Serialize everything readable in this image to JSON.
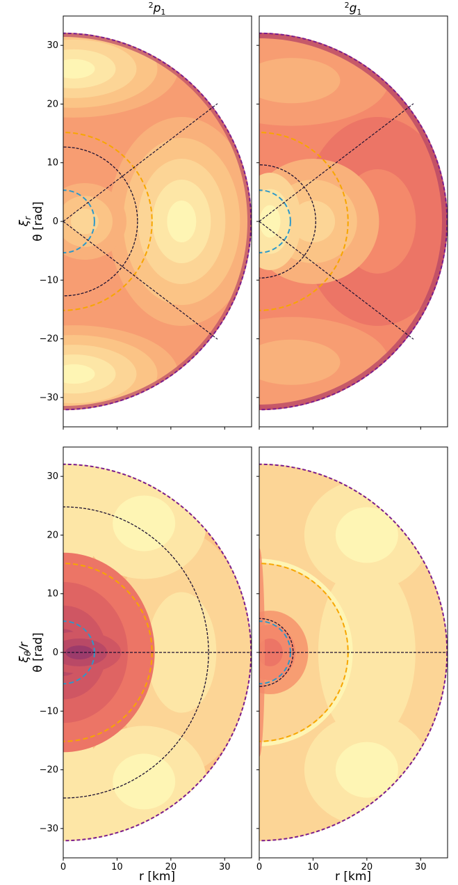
{
  "figure": {
    "panel_titles": {
      "left_base": "p",
      "right_base": "g",
      "superscript": "2",
      "subscript": "1"
    },
    "row_labels": [
      {
        "var": "ξ",
        "sub": "r",
        "suffix": "",
        "theta": "θ [rad]"
      },
      {
        "var": "ξ",
        "sub": "θ",
        "suffix": "/r",
        "theta": "θ [rad]"
      }
    ],
    "xlabel": "r [km]"
  },
  "colors": {
    "palette": [
      "#fef5b4",
      "#fde6a6",
      "#fcd596",
      "#fbc486",
      "#f9b17b",
      "#f79d72",
      "#f4896b",
      "#ec7566",
      "#df6463",
      "#cf5663",
      "#b94966",
      "#9c3b6b"
    ],
    "surface": "#7b1c8c",
    "rays": "#1c1030",
    "core": "#f7a600",
    "inner": "#2d98c9"
  },
  "chart_data": [
    {
      "type": "heatmap",
      "panel": "top-left",
      "title": "2p1",
      "ylabel": "ξr θ [rad]",
      "xlim": [
        0,
        35
      ],
      "ylim": [
        -35,
        35
      ],
      "yticks": [
        -30,
        -20,
        -10,
        0,
        10,
        20,
        30
      ],
      "outer_radius": 35,
      "core_radius": 16.5,
      "inner_radius": 5.8,
      "dark_radius": 13.8,
      "ray_angle_deg": 35
    },
    {
      "type": "heatmap",
      "panel": "top-right",
      "title": "2g1",
      "xlim": [
        0,
        35
      ],
      "ylim": [
        -35,
        35
      ],
      "outer_radius": 35,
      "core_radius": 16.5,
      "inner_radius": 5.8,
      "dark_radius": 10.5,
      "ray_angle_deg": 35
    },
    {
      "type": "heatmap",
      "panel": "bottom-left",
      "ylabel": "ξθ/r θ [rad]",
      "xlabel": "r [km]",
      "xlim": [
        0,
        35
      ],
      "ylim": [
        -35,
        35
      ],
      "xticks": [
        0,
        10,
        20,
        30
      ],
      "yticks": [
        -30,
        -20,
        -10,
        0,
        10,
        20,
        30
      ],
      "outer_radius": 35,
      "core_radius": 16.5,
      "inner_radius": 5.8,
      "dark_radius": 27
    },
    {
      "type": "heatmap",
      "panel": "bottom-right",
      "xlabel": "r [km]",
      "xlim": [
        0,
        35
      ],
      "ylim": [
        -35,
        35
      ],
      "xticks": [
        0,
        10,
        20,
        30
      ],
      "outer_radius": 35,
      "core_radius": 16.5,
      "inner_radius": 5.8,
      "dark_radius": 6.3
    }
  ]
}
